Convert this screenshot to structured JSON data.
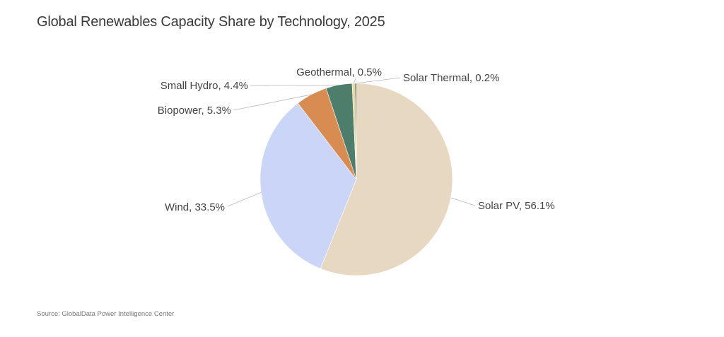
{
  "chart_data": {
    "type": "pie",
    "title": "Global Renewables Capacity Share by Technology, 2025",
    "source": "Source: GlobalData Power Intelligence Center",
    "slices": [
      {
        "name": "Solar PV",
        "value": 56.1,
        "label": "Solar PV, 56.1%",
        "color": "#e7d8c2"
      },
      {
        "name": "Wind",
        "value": 33.5,
        "label": "Wind, 33.5%",
        "color": "#cad5f8"
      },
      {
        "name": "Biopower",
        "value": 5.3,
        "label": "Biopower, 5.3%",
        "color": "#d88c52"
      },
      {
        "name": "Small Hydro",
        "value": 4.4,
        "label": "Small Hydro, 4.4%",
        "color": "#4d7d6b"
      },
      {
        "name": "Geothermal",
        "value": 0.5,
        "label": "Geothermal, 0.5%",
        "color": "#e3dd9a"
      },
      {
        "name": "Solar Thermal",
        "value": 0.2,
        "label": "Solar Thermal, 0.2%",
        "color": "#1f1f1f"
      }
    ],
    "start_angle": "12 o'clock",
    "direction": "clockwise",
    "legend": "none (data labels with leader lines)"
  }
}
